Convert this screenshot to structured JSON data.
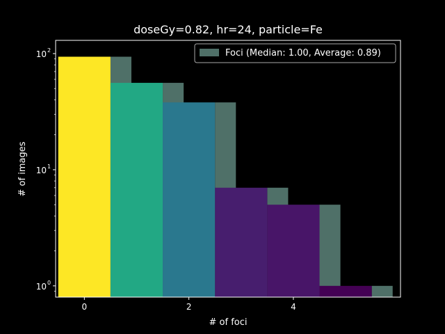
{
  "chart_data": {
    "type": "bar",
    "title": "doseGy=0.82, hr=24, particle=Fe",
    "xlabel": "# of foci",
    "ylabel": "# of images",
    "yscale": "log",
    "ylim": [
      0.8,
      130
    ],
    "xlim": [
      -0.55,
      6.05
    ],
    "x_ticks": [
      0,
      2,
      4
    ],
    "y_ticks": [
      {
        "value": 1,
        "label": "10",
        "exp": "0"
      },
      {
        "value": 10,
        "label": "10",
        "exp": "1"
      },
      {
        "value": 100,
        "label": "10",
        "exp": "2"
      }
    ],
    "grid": false,
    "background": "#000000",
    "legend": {
      "position": "top-right",
      "label": "Foci (Median: 1.00, Average: 0.89)",
      "color": "#4f7068"
    },
    "series": [
      {
        "name": "Foci (Median: 1.00, Average: 0.89)",
        "kind": "shadow",
        "color": "#4f7068",
        "bins": [
          {
            "x0": 0.5,
            "x1": 0.9,
            "value": 94
          },
          {
            "x0": 1.5,
            "x1": 1.9,
            "value": 56
          },
          {
            "x0": 2.5,
            "x1": 2.9,
            "value": 38
          },
          {
            "x0": 3.5,
            "x1": 3.9,
            "value": 7
          },
          {
            "x0": 4.5,
            "x1": 4.9,
            "value": 5
          },
          {
            "x0": 5.5,
            "x1": 5.9,
            "value": 1
          }
        ]
      },
      {
        "kind": "colored",
        "bins": [
          {
            "x0": -0.5,
            "x1": 0.5,
            "value": 94,
            "color": "#fde725"
          },
          {
            "x0": 0.5,
            "x1": 1.5,
            "value": 56,
            "color": "#22a884"
          },
          {
            "x0": 1.5,
            "x1": 2.5,
            "value": 38,
            "color": "#2a788e"
          },
          {
            "x0": 2.5,
            "x1": 3.5,
            "value": 7,
            "color": "#471e6e"
          },
          {
            "x0": 3.5,
            "x1": 4.5,
            "value": 5,
            "color": "#481568"
          },
          {
            "x0": 4.5,
            "x1": 5.5,
            "value": 1,
            "color": "#440154"
          }
        ]
      }
    ]
  }
}
